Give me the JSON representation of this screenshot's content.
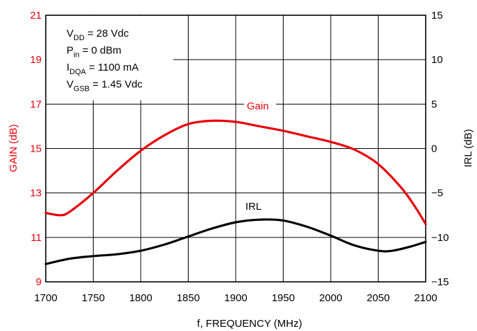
{
  "chart_data": {
    "type": "line",
    "x_axis": {
      "label": "f, FREQUENCY (MHz)",
      "range": [
        1700,
        2100
      ],
      "ticks": [
        "1700",
        "1750",
        "1800",
        "1850",
        "1900",
        "1950",
        "2000",
        "2050",
        "2100"
      ]
    },
    "y_axis_left": {
      "label": "GAIN (dB)",
      "color": "#e8000b",
      "range": [
        9,
        21
      ],
      "ticks": [
        "9",
        "11",
        "13",
        "15",
        "17",
        "19",
        "21"
      ]
    },
    "y_axis_right": {
      "label": "IRL (dB)",
      "color": "#000000",
      "range": [
        -15,
        15
      ],
      "ticks": [
        "15",
        "10",
        "5",
        "0",
        "−5",
        "−10",
        "−15"
      ]
    },
    "grid": true,
    "annotations": {
      "conditions": [
        {
          "main": "V",
          "sub": "DD",
          "rest": " = 28 Vdc"
        },
        {
          "main": "P",
          "sub": "in",
          "rest": " = 0 dBm"
        },
        {
          "main": "I",
          "sub": "DQA",
          "rest": " = 1100 mA"
        },
        {
          "main": "V",
          "sub": "GSB",
          "rest": " = 1.45 Vdc"
        }
      ]
    },
    "series": [
      {
        "name": "Gain",
        "axis": "left",
        "color": "#e8000b",
        "x": [
          1700,
          1715,
          1725,
          1750,
          1775,
          1800,
          1825,
          1850,
          1875,
          1900,
          1925,
          1950,
          1975,
          2000,
          2025,
          2050,
          2075,
          2090,
          2100
        ],
        "y": [
          12.1,
          12.0,
          12.15,
          13.0,
          14.0,
          14.9,
          15.6,
          16.1,
          16.25,
          16.2,
          16.0,
          15.8,
          15.55,
          15.3,
          14.95,
          14.3,
          13.2,
          12.3,
          11.6
        ]
      },
      {
        "name": "IRL",
        "axis": "right",
        "color": "#000000",
        "x": [
          1700,
          1725,
          1750,
          1775,
          1800,
          1825,
          1850,
          1875,
          1900,
          1925,
          1950,
          1975,
          2000,
          2025,
          2050,
          2065,
          2085,
          2100
        ],
        "y": [
          -13.0,
          -12.4,
          -12.1,
          -11.9,
          -11.5,
          -10.8,
          -9.9,
          -9.0,
          -8.3,
          -8.0,
          -8.1,
          -8.8,
          -9.8,
          -10.9,
          -11.5,
          -11.5,
          -11.0,
          -10.5
        ]
      }
    ]
  }
}
